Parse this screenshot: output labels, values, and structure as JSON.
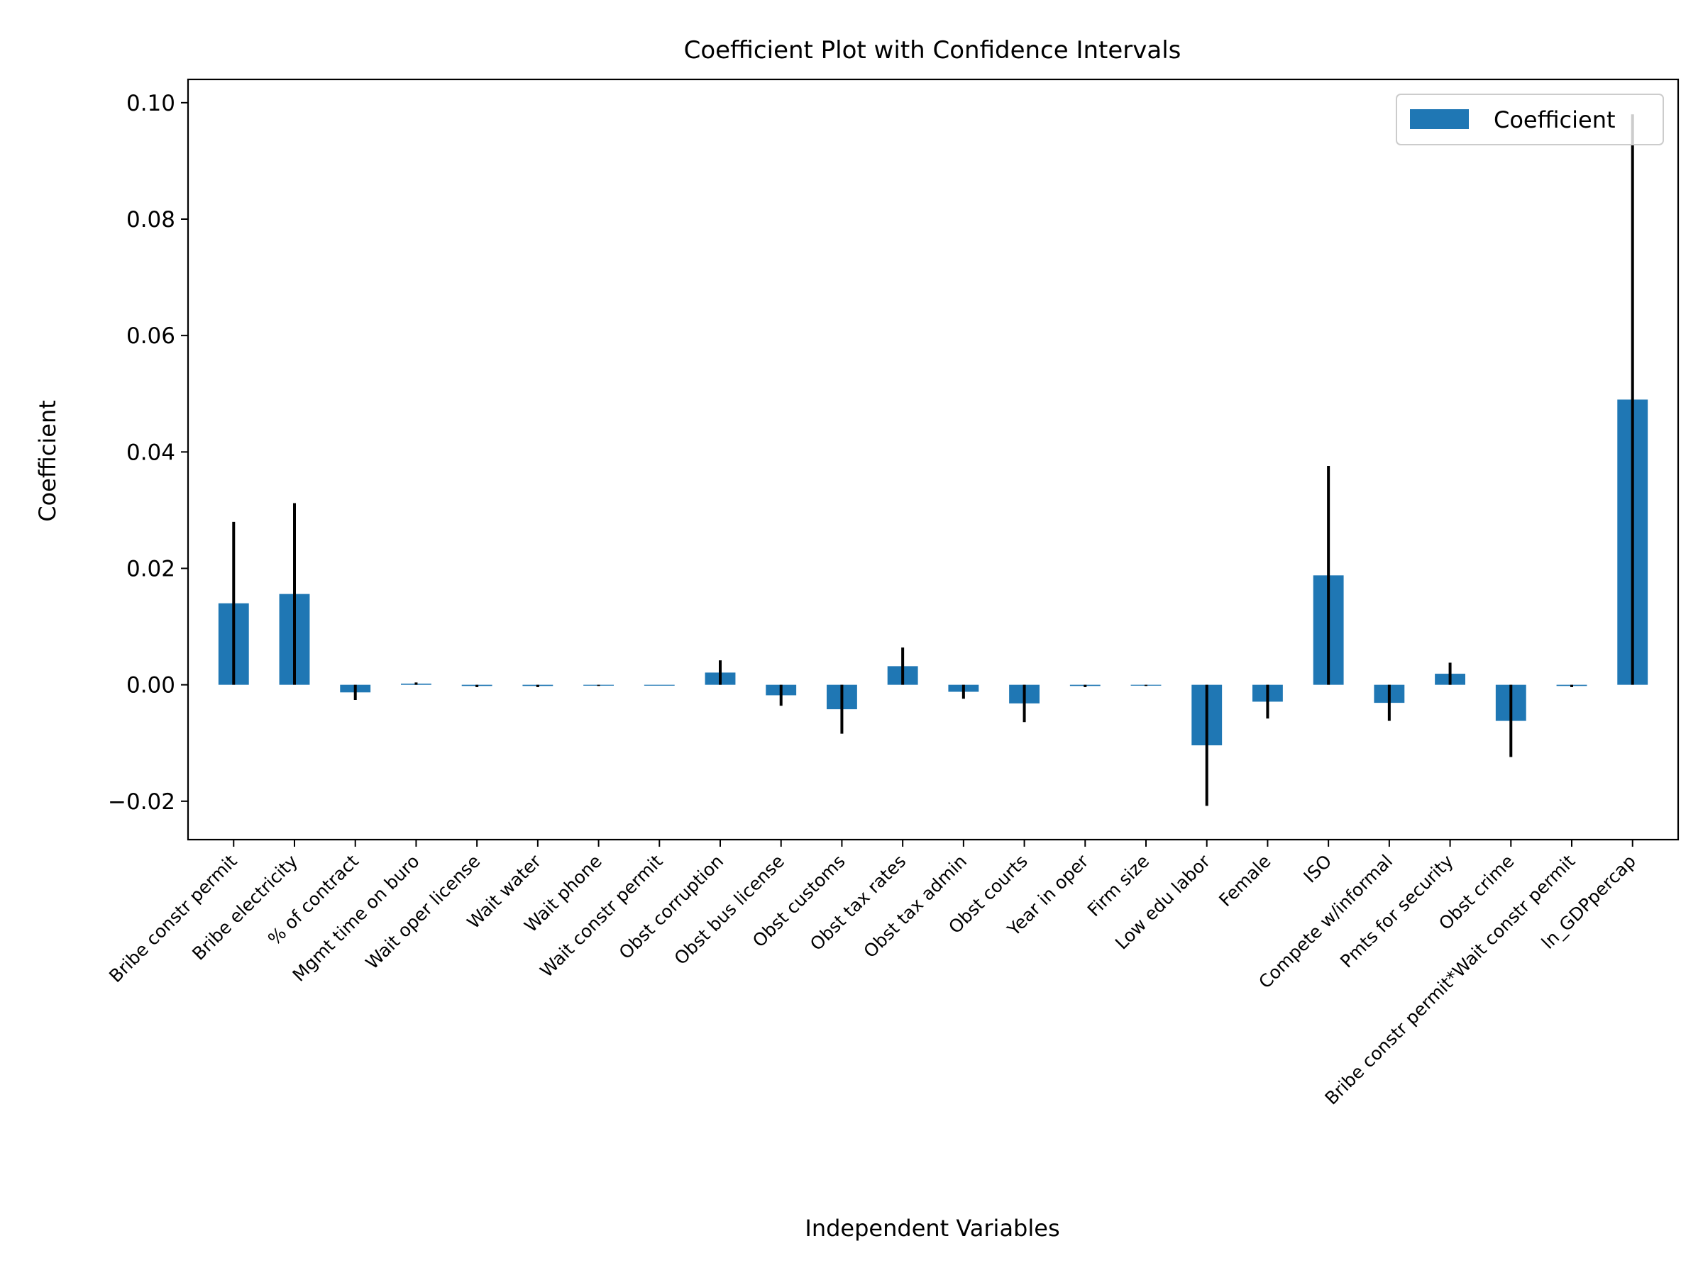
{
  "chart_data": {
    "type": "bar",
    "title": "Coefficient Plot with Confidence Intervals",
    "xlabel": "Independent Variables",
    "ylabel": "Coefficient",
    "ylim": [
      -0.0266,
      0.104
    ],
    "yticks": [
      -0.02,
      0.0,
      0.02,
      0.04,
      0.06,
      0.08,
      0.1
    ],
    "ytick_labels": [
      "−0.02",
      "0.00",
      "0.02",
      "0.04",
      "0.06",
      "0.08",
      "0.10"
    ],
    "grid": false,
    "legend": {
      "position": "top-right",
      "entries": [
        "Coefficient"
      ]
    },
    "colors": {
      "bar": "#1f77b4",
      "error_bar": "#000000",
      "axis": "#000000"
    },
    "categories": [
      "Bribe constr permit",
      "Bribe electricity",
      "% of contract",
      "Mgmt time on buro",
      "Wait oper license",
      "Wait water",
      "Wait phone",
      "Wait constr permit",
      "Obst corruption",
      "Obst bus license",
      "Obst customs",
      "Obst tax rates",
      "Obst tax admin",
      "Obst courts",
      "Year in oper",
      "Firm size",
      "Low edu labor",
      "Female",
      "ISO",
      "Compete w/informal",
      "Pmts for security",
      "Obst crime",
      "Bribe constr permit*Wait constr permit",
      "ln_GDPpercap"
    ],
    "series": [
      {
        "name": "Coefficient",
        "values": [
          0.014,
          0.0156,
          -0.0013,
          0.0002,
          -0.0002,
          -0.0002,
          -0.0001,
          0.0,
          0.0021,
          -0.0018,
          -0.0042,
          0.0032,
          -0.0012,
          -0.0032,
          -0.0002,
          -0.0001,
          -0.0104,
          -0.0029,
          0.0188,
          -0.0031,
          0.0019,
          -0.0062,
          -0.0002,
          0.049
        ],
        "error": [
          0.014,
          0.0156,
          0.0013,
          0.0002,
          0.0002,
          0.0002,
          0.0001,
          0.0,
          0.0021,
          0.0018,
          0.0042,
          0.0032,
          0.0012,
          0.0032,
          0.0002,
          0.0001,
          0.0104,
          0.0029,
          0.0188,
          0.0031,
          0.0019,
          0.0062,
          0.0002,
          0.049
        ]
      }
    ]
  }
}
